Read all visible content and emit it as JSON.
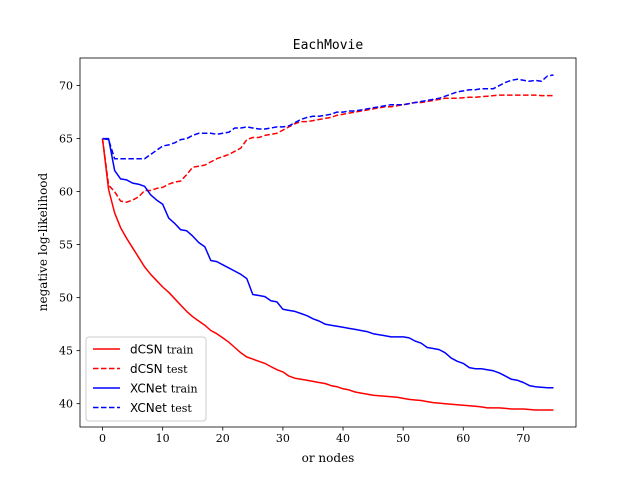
{
  "chart_data": {
    "type": "line",
    "title": "EachMovie",
    "xlabel": "or nodes",
    "ylabel": "negative log-likelihood",
    "xlim": [
      -3.75,
      78.75
    ],
    "ylim": [
      37.8,
      72.6
    ],
    "xticks": [
      0,
      10,
      20,
      30,
      40,
      50,
      60,
      70
    ],
    "yticks": [
      40,
      45,
      50,
      55,
      60,
      65,
      70
    ],
    "grid": false,
    "legend_position": "lower-left",
    "series": [
      {
        "name": "dCSN train",
        "legend_main": "dCSN",
        "legend_sub": "train",
        "color": "#ff0000",
        "style": "solid",
        "x": [
          0,
          1,
          2,
          3,
          4,
          5,
          6,
          7,
          8,
          9,
          10,
          11,
          12,
          13,
          14,
          15,
          16,
          17,
          18,
          19,
          20,
          21,
          22,
          23,
          24,
          25,
          26,
          27,
          28,
          29,
          30,
          31,
          32,
          33,
          34,
          35,
          36,
          37,
          38,
          39,
          40,
          41,
          42,
          43,
          44,
          45,
          46,
          47,
          48,
          49,
          50,
          51,
          52,
          53,
          54,
          55,
          56,
          57,
          58,
          59,
          60,
          61,
          62,
          63,
          64,
          65,
          66,
          67,
          68,
          69,
          70,
          71,
          72,
          73,
          74,
          75
        ],
        "y": [
          65.0,
          60.2,
          58.0,
          56.6,
          55.6,
          54.7,
          53.8,
          52.9,
          52.2,
          51.6,
          51.0,
          50.5,
          49.9,
          49.3,
          48.7,
          48.2,
          47.8,
          47.4,
          46.9,
          46.6,
          46.2,
          45.8,
          45.3,
          44.8,
          44.4,
          44.2,
          44.0,
          43.8,
          43.5,
          43.2,
          43.0,
          42.6,
          42.4,
          42.3,
          42.2,
          42.1,
          42.0,
          41.9,
          41.7,
          41.6,
          41.4,
          41.3,
          41.1,
          41.0,
          40.9,
          40.8,
          40.75,
          40.7,
          40.65,
          40.6,
          40.5,
          40.4,
          40.35,
          40.3,
          40.2,
          40.1,
          40.05,
          40.0,
          39.95,
          39.9,
          39.85,
          39.8,
          39.75,
          39.7,
          39.6,
          39.6,
          39.6,
          39.55,
          39.5,
          39.5,
          39.5,
          39.45,
          39.4,
          39.4,
          39.4,
          39.4
        ]
      },
      {
        "name": "dCSN test",
        "legend_main": "dCSN",
        "legend_sub": "test",
        "color": "#ff0000",
        "style": "dashed",
        "x": [
          0,
          1,
          2,
          3,
          4,
          5,
          6,
          7,
          8,
          9,
          10,
          11,
          12,
          13,
          14,
          15,
          16,
          17,
          18,
          19,
          20,
          21,
          22,
          23,
          24,
          25,
          26,
          27,
          28,
          29,
          30,
          31,
          32,
          33,
          34,
          35,
          36,
          37,
          38,
          39,
          40,
          41,
          42,
          43,
          44,
          45,
          46,
          47,
          48,
          49,
          50,
          51,
          52,
          53,
          54,
          55,
          56,
          57,
          58,
          59,
          60,
          61,
          62,
          63,
          64,
          65,
          66,
          67,
          68,
          69,
          70,
          71,
          72,
          73,
          74,
          75
        ],
        "y": [
          65.0,
          60.6,
          60.0,
          59.1,
          59.0,
          59.2,
          59.5,
          60.1,
          60.1,
          60.3,
          60.4,
          60.7,
          60.9,
          61.0,
          61.6,
          62.3,
          62.4,
          62.5,
          62.8,
          63.1,
          63.3,
          63.5,
          63.8,
          64.1,
          64.9,
          65.1,
          65.1,
          65.3,
          65.4,
          65.5,
          65.8,
          66.1,
          66.4,
          66.6,
          66.6,
          66.7,
          66.8,
          66.9,
          67.0,
          67.2,
          67.3,
          67.4,
          67.5,
          67.6,
          67.7,
          67.8,
          67.9,
          68.0,
          68.0,
          68.1,
          68.2,
          68.3,
          68.4,
          68.4,
          68.5,
          68.6,
          68.7,
          68.8,
          68.8,
          68.8,
          68.85,
          68.9,
          68.9,
          68.95,
          69.0,
          69.05,
          69.1,
          69.1,
          69.1,
          69.1,
          69.1,
          69.1,
          69.1,
          69.05,
          69.05,
          69.05
        ]
      },
      {
        "name": "XCNet train",
        "legend_main": "XCNet",
        "legend_sub": "train",
        "color": "#0000ff",
        "style": "solid",
        "x": [
          0,
          1,
          2,
          3,
          4,
          5,
          6,
          7,
          8,
          9,
          10,
          11,
          12,
          13,
          14,
          15,
          16,
          17,
          18,
          19,
          20,
          21,
          22,
          23,
          24,
          25,
          26,
          27,
          28,
          29,
          30,
          31,
          32,
          33,
          34,
          35,
          36,
          37,
          38,
          39,
          40,
          41,
          42,
          43,
          44,
          45,
          46,
          47,
          48,
          49,
          50,
          51,
          52,
          53,
          54,
          55,
          56,
          57,
          58,
          59,
          60,
          61,
          62,
          63,
          64,
          65,
          66,
          67,
          68,
          69,
          70,
          71,
          72,
          73,
          74,
          75
        ],
        "y": [
          65.0,
          65.0,
          62.0,
          61.2,
          61.1,
          60.8,
          60.7,
          60.5,
          59.7,
          59.2,
          58.8,
          57.5,
          57.0,
          56.4,
          56.3,
          55.8,
          55.2,
          54.8,
          53.5,
          53.4,
          53.1,
          52.8,
          52.5,
          52.2,
          51.8,
          50.3,
          50.2,
          50.1,
          49.7,
          49.6,
          48.9,
          48.8,
          48.7,
          48.5,
          48.3,
          48.0,
          47.8,
          47.5,
          47.4,
          47.3,
          47.2,
          47.1,
          47.0,
          46.9,
          46.8,
          46.6,
          46.5,
          46.4,
          46.3,
          46.3,
          46.3,
          46.2,
          45.9,
          45.7,
          45.3,
          45.2,
          45.1,
          44.8,
          44.3,
          44.0,
          43.8,
          43.4,
          43.3,
          43.3,
          43.2,
          43.1,
          42.9,
          42.6,
          42.3,
          42.2,
          42.0,
          41.7,
          41.6,
          41.55,
          41.5,
          41.5
        ]
      },
      {
        "name": "XCNet test",
        "legend_main": "XCNet",
        "legend_sub": "test",
        "color": "#0000ff",
        "style": "dashed",
        "x": [
          0,
          1,
          2,
          3,
          4,
          5,
          6,
          7,
          8,
          9,
          10,
          11,
          12,
          13,
          14,
          15,
          16,
          17,
          18,
          19,
          20,
          21,
          22,
          23,
          24,
          25,
          26,
          27,
          28,
          29,
          30,
          31,
          32,
          33,
          34,
          35,
          36,
          37,
          38,
          39,
          40,
          41,
          42,
          43,
          44,
          45,
          46,
          47,
          48,
          49,
          50,
          51,
          52,
          53,
          54,
          55,
          56,
          57,
          58,
          59,
          60,
          61,
          62,
          63,
          64,
          65,
          66,
          67,
          68,
          69,
          70,
          71,
          72,
          73,
          74,
          75
        ],
        "y": [
          65.0,
          64.9,
          63.1,
          63.1,
          63.1,
          63.1,
          63.1,
          63.1,
          63.5,
          63.9,
          64.3,
          64.4,
          64.6,
          64.9,
          65.0,
          65.3,
          65.5,
          65.5,
          65.5,
          65.4,
          65.5,
          65.6,
          66.0,
          66.0,
          66.1,
          66.0,
          65.9,
          65.9,
          66.0,
          66.1,
          66.1,
          66.2,
          66.5,
          66.8,
          67.0,
          67.1,
          67.1,
          67.2,
          67.3,
          67.5,
          67.5,
          67.6,
          67.6,
          67.7,
          67.8,
          67.9,
          68.0,
          68.1,
          68.2,
          68.2,
          68.2,
          68.3,
          68.4,
          68.5,
          68.6,
          68.7,
          68.8,
          69.0,
          69.2,
          69.4,
          69.5,
          69.6,
          69.6,
          69.7,
          69.7,
          69.7,
          70.0,
          70.3,
          70.5,
          70.6,
          70.5,
          70.4,
          70.5,
          70.4,
          70.9,
          71.0
        ]
      }
    ]
  }
}
